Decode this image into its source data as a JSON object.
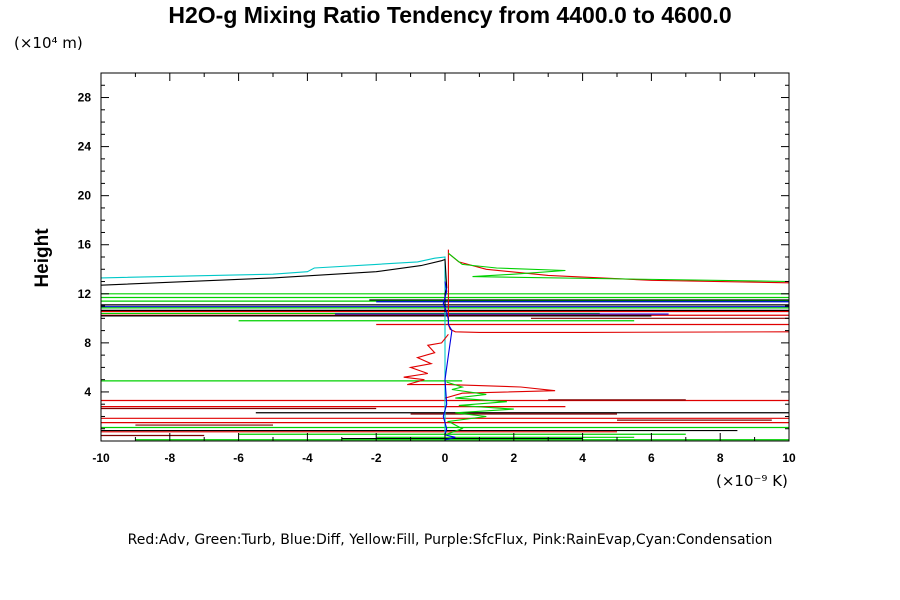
{
  "chart_data": {
    "type": "line",
    "title": "H2O-g Mixing Ratio Tendency from 4400.0 to 4600.0",
    "ylabel": "Height",
    "y_unit": "(×10⁴ m)",
    "x_unit": "(×10⁻⁹ K)",
    "legend_text": "Red:Adv, Green:Turb, Blue:Diff, Yellow:Fill, Purple:SfcFlux, Pink:RainEvap,Cyan:Condensation",
    "xlim": [
      -10,
      10
    ],
    "ylim": [
      0,
      30
    ],
    "xticks": [
      -10,
      -8,
      -6,
      -4,
      -2,
      0,
      2,
      4,
      6,
      8,
      10
    ],
    "yticks": [
      4,
      8,
      12,
      16,
      20,
      24,
      28
    ],
    "grid": false,
    "series": [
      {
        "name": "Cyan:Condensation",
        "color": "#00c8c8",
        "x": [
          -10,
          -5.0,
          -4.0,
          -3.8,
          -2.0,
          -0.8,
          -0.3,
          0,
          0,
          0,
          0,
          0
        ],
        "y": [
          13.3,
          13.6,
          13.8,
          14.1,
          14.4,
          14.6,
          14.9,
          15.0,
          14.5,
          10,
          4,
          0
        ]
      },
      {
        "name": "Black",
        "color": "#000000",
        "x": [
          -10,
          -5.0,
          -2.0,
          -0.7,
          -0.1,
          0,
          0.05,
          0,
          0,
          0
        ],
        "y": [
          12.7,
          13.3,
          13.8,
          14.3,
          14.7,
          14.8,
          12.5,
          12.0,
          11.0,
          10.5
        ]
      },
      {
        "name": "Red:Adv",
        "color": "#e00000",
        "x": [
          10,
          6.0,
          3.0,
          1.2,
          0.4,
          0.1,
          0.1,
          0.1,
          0.15,
          0.3,
          1.0,
          4.0,
          10
        ],
        "y": [
          12.9,
          13.1,
          13.5,
          14.0,
          14.6,
          15.3,
          15.6,
          9.5,
          9.1,
          8.9,
          8.85,
          8.85,
          8.9
        ]
      },
      {
        "name": "Green:Turb",
        "color": "#00d000",
        "x": [
          0.1,
          0.5,
          1.5,
          3.5,
          2.0,
          0.8,
          10
        ],
        "y": [
          15.3,
          14.4,
          14.1,
          13.9,
          13.6,
          13.4,
          13.0
        ]
      },
      {
        "name": "Red:Adv (lower profile)",
        "color": "#e00000",
        "x": [
          0.1,
          -0.1,
          -0.5,
          -0.3,
          -0.8,
          -0.4,
          -1.0,
          -0.5,
          -1.2,
          -0.6,
          -1.1,
          0.05,
          0.1,
          2.2,
          3.2,
          0.5,
          0
        ],
        "y": [
          8.7,
          8.0,
          7.8,
          7.2,
          6.8,
          6.3,
          6.0,
          5.5,
          5.2,
          5.0,
          4.6,
          4.6,
          4.6,
          4.4,
          4.1,
          3.9,
          3.5
        ]
      },
      {
        "name": "Blue:Diff",
        "color": "#0000e0",
        "x": [
          0,
          0.05,
          -0.05,
          0.05,
          0.1,
          0.1,
          0.2,
          0.1,
          0,
          0.05,
          -0.05,
          0.05,
          0,
          0.3,
          0
        ],
        "y": [
          13.0,
          12.2,
          11.2,
          10.5,
          9.9,
          9.5,
          9.0,
          7.0,
          5.0,
          3.0,
          2.0,
          1.0,
          0.5,
          0.3,
          0.1
        ]
      },
      {
        "name": "Green:Turb (lower profile)",
        "color": "#00d000",
        "x": [
          0.05,
          0.5,
          0.2,
          1.2,
          0.3,
          1.8,
          0.4,
          2.0,
          0.3,
          1.2,
          0.1,
          0.5,
          0
        ],
        "y": [
          4.8,
          4.4,
          4.2,
          3.8,
          3.5,
          3.2,
          2.9,
          2.6,
          2.3,
          2.0,
          1.6,
          1.0,
          0.5
        ]
      }
    ],
    "horizontal_streaks": [
      {
        "color": "#00d000",
        "x": [
          -10,
          10
        ],
        "y": 12.0
      },
      {
        "color": "#00d000",
        "x": [
          -10,
          10
        ],
        "y": 11.7
      },
      {
        "color": "#00d000",
        "x": [
          -10,
          10
        ],
        "y": 11.4
      },
      {
        "color": "#000000",
        "x": [
          -2.2,
          10
        ],
        "y": 11.5
      },
      {
        "color": "#0000e0",
        "x": [
          -2.0,
          10
        ],
        "y": 11.35
      },
      {
        "color": "#000000",
        "x": [
          -10,
          10
        ],
        "y": 11.1
      },
      {
        "color": "#0000e0",
        "x": [
          -10,
          10
        ],
        "y": 10.95
      },
      {
        "color": "#00d000",
        "x": [
          -10,
          10
        ],
        "y": 10.85
      },
      {
        "color": "#000000",
        "x": [
          -10,
          10
        ],
        "y": 10.65
      },
      {
        "color": "#e00000",
        "x": [
          -10,
          10
        ],
        "y": 10.55
      },
      {
        "color": "#00d000",
        "x": [
          -10,
          4.5
        ],
        "y": 10.4
      },
      {
        "color": "#0000e0",
        "x": [
          -3.2,
          6.5
        ],
        "y": 10.35
      },
      {
        "color": "#e00000",
        "x": [
          -10,
          10
        ],
        "y": 10.25
      },
      {
        "color": "#000000",
        "x": [
          -10,
          6.0
        ],
        "y": 10.2
      },
      {
        "color": "#800000",
        "x": [
          2.5,
          10
        ],
        "y": 10.0
      },
      {
        "color": "#00d000",
        "x": [
          -6.0,
          5.5
        ],
        "y": 9.8
      },
      {
        "color": "#e00000",
        "x": [
          -2.0,
          10
        ],
        "y": 9.5
      },
      {
        "color": "#00d000",
        "x": [
          -10,
          0.5
        ],
        "y": 4.9
      },
      {
        "color": "#e00000",
        "x": [
          -10,
          10
        ],
        "y": 3.3
      },
      {
        "color": "#800000",
        "x": [
          3.0,
          7.0
        ],
        "y": 3.35
      },
      {
        "color": "#e00000",
        "x": [
          -10,
          3.5
        ],
        "y": 2.8
      },
      {
        "color": "#800000",
        "x": [
          -10,
          -2.0
        ],
        "y": 2.65
      },
      {
        "color": "#000000",
        "x": [
          -5.5,
          10
        ],
        "y": 2.3
      },
      {
        "color": "#800000",
        "x": [
          -1.0,
          5.0
        ],
        "y": 2.2
      },
      {
        "color": "#e00000",
        "x": [
          -10,
          10
        ],
        "y": 1.85
      },
      {
        "color": "#800000",
        "x": [
          5.0,
          9.5
        ],
        "y": 1.7
      },
      {
        "color": "#e00000",
        "x": [
          -10,
          10
        ],
        "y": 1.5
      },
      {
        "color": "#800000",
        "x": [
          -9.0,
          -5.0
        ],
        "y": 1.3
      },
      {
        "color": "#00d000",
        "x": [
          -10,
          10
        ],
        "y": 1.1
      },
      {
        "color": "#000000",
        "x": [
          -10,
          8.5
        ],
        "y": 0.85
      },
      {
        "color": "#e00000",
        "x": [
          -10,
          5.0
        ],
        "y": 0.75
      },
      {
        "color": "#00d000",
        "x": [
          -6.0,
          7.0
        ],
        "y": 0.55
      },
      {
        "color": "#800000",
        "x": [
          -10,
          -7.0
        ],
        "y": 0.45
      },
      {
        "color": "#00d000",
        "x": [
          -2.0,
          5.5
        ],
        "y": 0.3
      },
      {
        "color": "#000000",
        "x": [
          -3.0,
          4.0
        ],
        "y": 0.2
      },
      {
        "color": "#00d000",
        "x": [
          -9.0,
          10
        ],
        "y": 0.1
      }
    ]
  }
}
